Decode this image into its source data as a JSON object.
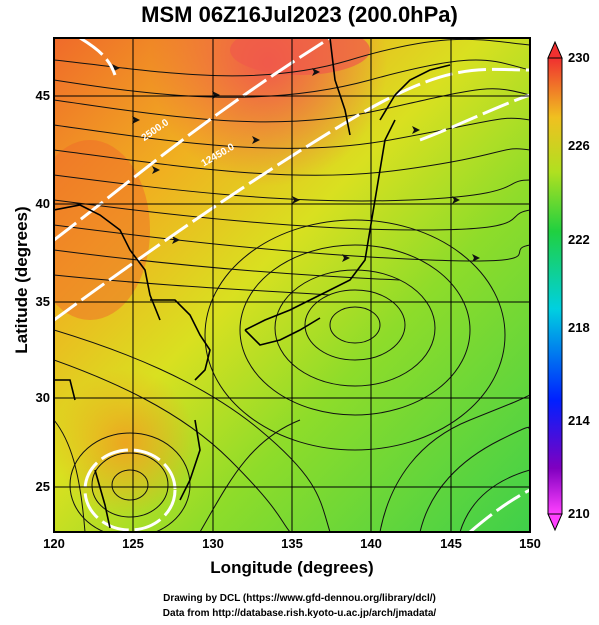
{
  "title": "MSM 06Z16Jul2023 (200.0hPa)",
  "xlabel": "Longitude (degrees)",
  "ylabel": "Latitude  (degrees)",
  "x_ticks": [
    "120",
    "125",
    "130",
    "135",
    "140",
    "145",
    "150"
  ],
  "y_ticks": [
    "25",
    "30",
    "35",
    "40",
    "45"
  ],
  "colorbar": {
    "ticks": [
      "230",
      "226",
      "222",
      "218",
      "214",
      "210"
    ],
    "min": 210,
    "max": 230,
    "colors": [
      "#ff00ff",
      "#0000ff",
      "#00ffff",
      "#00ff00",
      "#ffff00",
      "#ff0000"
    ]
  },
  "contour_labels": [
    "2500.0",
    "12450.0"
  ],
  "credits": {
    "line1": "Drawing by DCL (https://www.gfd-dennou.org/library/dcl/)",
    "line2": "Data from http://database.rish.kyoto-u.ac.jp/arch/jmadata/"
  },
  "map": {
    "lon_range": [
      120,
      150
    ],
    "lat_range": [
      23,
      48
    ],
    "features": [
      "streamlines",
      "temperature shading",
      "geopotential contours",
      "coastlines"
    ]
  }
}
